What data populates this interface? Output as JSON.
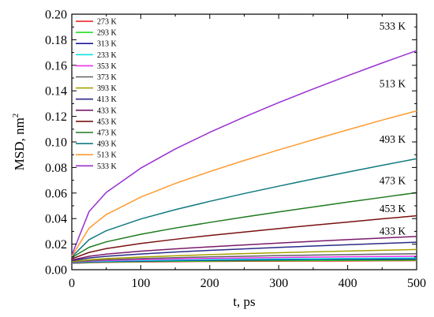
{
  "chart_data": {
    "type": "line",
    "xlabel": "t, ps",
    "ylabel": "MSD, nm",
    "ylabel_superscript": "2",
    "xlim": [
      0,
      500
    ],
    "ylim": [
      0,
      0.2
    ],
    "x_ticks": [
      0,
      100,
      200,
      300,
      400,
      500
    ],
    "y_ticks": [
      0.0,
      0.02,
      0.04,
      0.06,
      0.08,
      0.1,
      0.12,
      0.14,
      0.16,
      0.18,
      0.2
    ],
    "x_tick_labels": [
      "0",
      "100",
      "200",
      "300",
      "400",
      "500"
    ],
    "y_tick_labels": [
      "0.00",
      "0.02",
      "0.04",
      "0.06",
      "0.08",
      "0.10",
      "0.12",
      "0.14",
      "0.16",
      "0.18",
      "0.20"
    ],
    "grid": false,
    "legend_position": "top-left",
    "x": [
      0,
      25,
      50,
      100,
      150,
      200,
      250,
      300,
      350,
      400,
      450,
      500
    ],
    "series": [
      {
        "name": "273 K",
        "color": "#e8141c",
        "values": [
          0.005,
          0.0055,
          0.0058,
          0.0061,
          0.0063,
          0.0065,
          0.0066,
          0.0067,
          0.0068,
          0.0069,
          0.007,
          0.0071
        ]
      },
      {
        "name": "293 K",
        "color": "#22dd22",
        "values": [
          0.0052,
          0.0057,
          0.006,
          0.0064,
          0.0066,
          0.0068,
          0.007,
          0.0071,
          0.0072,
          0.0073,
          0.0074,
          0.0075
        ]
      },
      {
        "name": "313 K",
        "color": "#1a1a9e",
        "values": [
          0.0054,
          0.006,
          0.0064,
          0.0068,
          0.0071,
          0.0074,
          0.0076,
          0.0078,
          0.008,
          0.0081,
          0.0082,
          0.0083
        ]
      },
      {
        "name": "233 K",
        "color": "#10e0e0",
        "values": [
          0.0056,
          0.0063,
          0.0067,
          0.0072,
          0.0076,
          0.0079,
          0.0082,
          0.0084,
          0.0086,
          0.0088,
          0.009,
          0.0092
        ]
      },
      {
        "name": "353 K",
        "color": "#ee30ee",
        "values": [
          0.0058,
          0.0067,
          0.0072,
          0.0079,
          0.0084,
          0.0088,
          0.0092,
          0.0095,
          0.0098,
          0.0101,
          0.0103,
          0.0105
        ]
      },
      {
        "name": "373 K",
        "color": "#606060",
        "values": [
          0.006,
          0.0071,
          0.0078,
          0.0087,
          0.0094,
          0.01,
          0.0105,
          0.011,
          0.0114,
          0.0118,
          0.0122,
          0.0125
        ]
      },
      {
        "name": "393 K",
        "color": "#a8a000",
        "values": [
          0.0064,
          0.0078,
          0.0087,
          0.0099,
          0.0109,
          0.0118,
          0.0126,
          0.0133,
          0.014,
          0.0146,
          0.0152,
          0.0158
        ]
      },
      {
        "name": "413 K",
        "color": "#2a2a8a",
        "values": [
          0.007,
          0.0092,
          0.0105,
          0.0123,
          0.0138,
          0.0151,
          0.0163,
          0.0174,
          0.0185,
          0.0195,
          0.0205,
          0.0215
        ]
      },
      {
        "name": "433 K",
        "color": "#7a1a6a",
        "values": [
          0.0076,
          0.0105,
          0.0122,
          0.0145,
          0.0163,
          0.0179,
          0.0194,
          0.0208,
          0.0222,
          0.0235,
          0.0248,
          0.026
        ]
      },
      {
        "name": "453 K",
        "color": "#7a1010",
        "values": [
          0.0085,
          0.0135,
          0.0165,
          0.0205,
          0.0238,
          0.0268,
          0.0295,
          0.0322,
          0.0348,
          0.0373,
          0.0398,
          0.0422
        ]
      },
      {
        "name": "473 K",
        "color": "#1e7a1e",
        "values": [
          0.0095,
          0.0175,
          0.0218,
          0.0277,
          0.0326,
          0.037,
          0.0412,
          0.0452,
          0.0491,
          0.0529,
          0.0566,
          0.0603
        ]
      },
      {
        "name": "493 K",
        "color": "#107a80",
        "values": [
          0.01,
          0.0235,
          0.0305,
          0.0397,
          0.047,
          0.0535,
          0.0596,
          0.0654,
          0.071,
          0.0764,
          0.0817,
          0.0869
        ]
      },
      {
        "name": "513 K",
        "color": "#ff9a30",
        "values": [
          0.0105,
          0.0325,
          0.0432,
          0.0568,
          0.0675,
          0.0768,
          0.0855,
          0.0938,
          0.1017,
          0.1095,
          0.1171,
          0.1243
        ]
      },
      {
        "name": "533 K",
        "color": "#9a30d0",
        "values": [
          0.0115,
          0.0455,
          0.0605,
          0.0795,
          0.0945,
          0.1075,
          0.1195,
          0.1308,
          0.1415,
          0.1518,
          0.1618,
          0.1715
        ]
      }
    ],
    "annotations": [
      {
        "text": "533 K",
        "x": 465,
        "y": 0.1905
      },
      {
        "text": "513 K",
        "x": 465,
        "y": 0.1455
      },
      {
        "text": "493 K",
        "x": 465,
        "y": 0.1017
      },
      {
        "text": "473 K",
        "x": 465,
        "y": 0.0693
      },
      {
        "text": "453 K",
        "x": 465,
        "y": 0.0475
      },
      {
        "text": "433 K",
        "x": 465,
        "y": 0.0298
      }
    ]
  }
}
